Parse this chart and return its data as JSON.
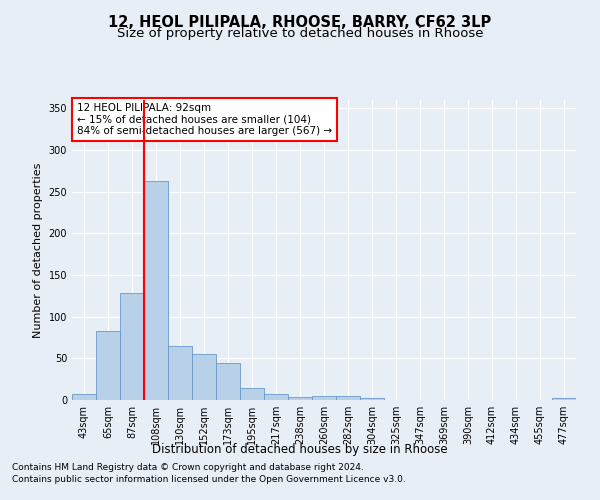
{
  "title1": "12, HEOL PILIPALA, RHOOSE, BARRY, CF62 3LP",
  "title2": "Size of property relative to detached houses in Rhoose",
  "xlabel": "Distribution of detached houses by size in Rhoose",
  "ylabel": "Number of detached properties",
  "categories": [
    "43sqm",
    "65sqm",
    "87sqm",
    "108sqm",
    "130sqm",
    "152sqm",
    "173sqm",
    "195sqm",
    "217sqm",
    "238sqm",
    "260sqm",
    "282sqm",
    "304sqm",
    "325sqm",
    "347sqm",
    "369sqm",
    "390sqm",
    "412sqm",
    "434sqm",
    "455sqm",
    "477sqm"
  ],
  "values": [
    7,
    83,
    129,
    263,
    65,
    55,
    44,
    14,
    7,
    4,
    5,
    5,
    3,
    0,
    0,
    0,
    0,
    0,
    0,
    0,
    3
  ],
  "bar_color": "#b8d0e8",
  "bar_edgecolor": "#6699cc",
  "redline_index": 2.5,
  "annotation_title": "12 HEOL PILIPALA: 92sqm",
  "annotation_line1": "← 15% of detached houses are smaller (104)",
  "annotation_line2": "84% of semi-detached houses are larger (567) →",
  "ylim": [
    0,
    360
  ],
  "yticks": [
    0,
    50,
    100,
    150,
    200,
    250,
    300,
    350
  ],
  "footnote1": "Contains HM Land Registry data © Crown copyright and database right 2024.",
  "footnote2": "Contains public sector information licensed under the Open Government Licence v3.0.",
  "bg_color": "#e8eef5",
  "plot_bg_color": "#e8eef5",
  "title1_fontsize": 10.5,
  "title2_fontsize": 9.5,
  "xlabel_fontsize": 8.5,
  "ylabel_fontsize": 8,
  "tick_fontsize": 7,
  "annot_fontsize": 7.5,
  "footnote_fontsize": 6.5
}
